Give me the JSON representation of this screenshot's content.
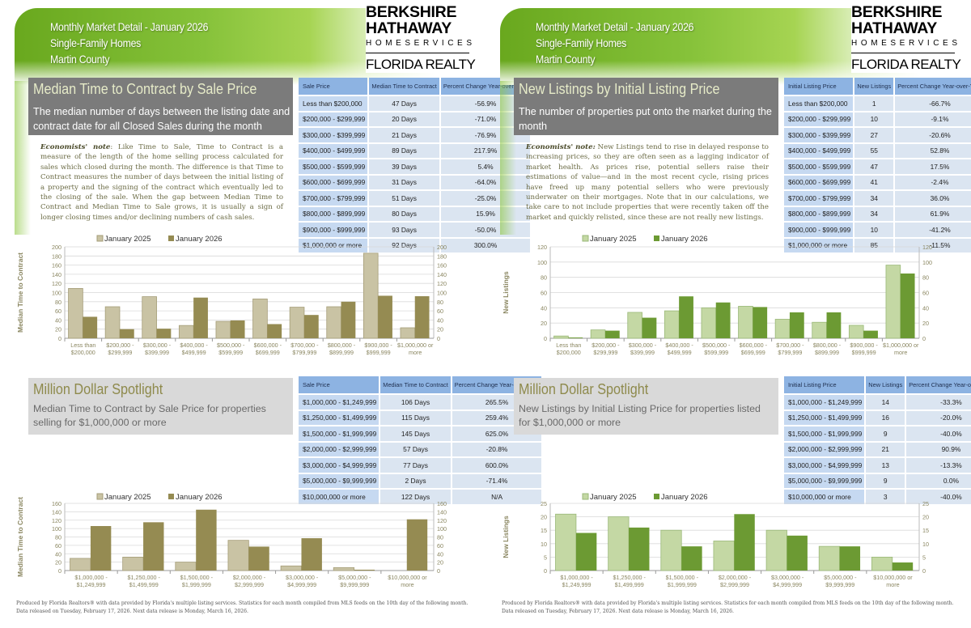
{
  "header": {
    "line1": "Monthly Market Detail - January 2026",
    "line2": "Single-Family Homes",
    "line3": "Martin County"
  },
  "logo": {
    "line1": "BERKSHIRE",
    "line2": "HATHAWAY",
    "line3": "HOMESERVICES",
    "line4": "FLORIDA REALTY"
  },
  "footer": {
    "line1": "Produced by Florida Realtors® with data provided by Florida's multiple listing services. Statistics for each month compiled from MLS feeds on the 10th day of the following month.",
    "line2": "Data released on Tuesday, February 17, 2026. Next data release is Monday, March 16, 2026."
  },
  "panels": [
    {
      "section_title": "Median Time to Contract by Sale Price",
      "section_subtitle": "The median number of days between the listing date and contract date for all Closed Sales during the month",
      "note_label": "Economists' note",
      "note_text": ": Like Time to Sale, Time to Contract is a measure of the length of the home selling process calculated for sales which closed during the month. The difference is that Time to Contract measures the number of days between the initial listing of a property and the signing of the contract which eventually led to the closing of the sale. When the gap between Median Time to Contract and Median Time to Sale grows, it is usually a sign of longer closing times and/or declining numbers of cash sales.",
      "table": {
        "headers": [
          "Sale Price",
          "Median Time to Contract",
          "Percent Change Year-over-Year"
        ],
        "rows": [
          [
            "Less than $200,000",
            "47 Days",
            "-56.9%"
          ],
          [
            "$200,000 - $299,999",
            "20 Days",
            "-71.0%"
          ],
          [
            "$300,000 - $399,999",
            "21 Days",
            "-76.9%"
          ],
          [
            "$400,000 - $499,999",
            "89 Days",
            "217.9%"
          ],
          [
            "$500,000 - $599,999",
            "39 Days",
            "5.4%"
          ],
          [
            "$600,000 - $699,999",
            "31 Days",
            "-64.0%"
          ],
          [
            "$700,000 - $799,999",
            "51 Days",
            "-25.0%"
          ],
          [
            "$800,000 - $899,999",
            "80 Days",
            "15.9%"
          ],
          [
            "$900,000 - $999,999",
            "93 Days",
            "-50.0%"
          ],
          [
            "$1,000,000 or more",
            "92 Days",
            "300.0%"
          ]
        ]
      },
      "spotlight_title": "Million Dollar Spotlight",
      "spotlight_subtitle": "Median Time to Contract by Sale Price for properties selling for $1,000,000 or more",
      "spotlight_table": {
        "headers": [
          "Sale Price",
          "Median Time to Contract",
          "Percent Change Year-over-Year"
        ],
        "rows": [
          [
            "$1,000,000 - $1,249,999",
            "106 Days",
            "265.5%"
          ],
          [
            "$1,250,000 - $1,499,999",
            "115 Days",
            "259.4%"
          ],
          [
            "$1,500,000 - $1,999,999",
            "145 Days",
            "625.0%"
          ],
          [
            "$2,000,000 - $2,999,999",
            "57 Days",
            "-20.8%"
          ],
          [
            "$3,000,000 - $4,999,999",
            "77 Days",
            "600.0%"
          ],
          [
            "$5,000,000 - $9,999,999",
            "2 Days",
            "-71.4%"
          ],
          [
            "$10,000,000 or more",
            "122 Days",
            "N/A"
          ]
        ]
      }
    },
    {
      "section_title": "New Listings by Initial Listing Price",
      "section_subtitle": "The number of properties put onto the market during the month",
      "note_label": "Economists' note:",
      "note_text": " New Listings tend to rise in delayed response to increasing prices, so they are often seen as a lagging indicator of market health. As prices rise, potential sellers raise their estimations of value—and in the most recent cycle, rising prices have freed up many potential sellers who were previously underwater on their mortgages. Note that in our calculations, we take care to not include properties that were recently taken off the market and quickly relisted, since these are not really new listings.",
      "table": {
        "headers": [
          "Initial Listing Price",
          "New Listings",
          "Percent Change Year-over-Year"
        ],
        "rows": [
          [
            "Less than $200,000",
            "1",
            "-66.7%"
          ],
          [
            "$200,000 - $299,999",
            "10",
            "-9.1%"
          ],
          [
            "$300,000 - $399,999",
            "27",
            "-20.6%"
          ],
          [
            "$400,000 - $499,999",
            "55",
            "52.8%"
          ],
          [
            "$500,000 - $599,999",
            "47",
            "17.5%"
          ],
          [
            "$600,000 - $699,999",
            "41",
            "-2.4%"
          ],
          [
            "$700,000 - $799,999",
            "34",
            "36.0%"
          ],
          [
            "$800,000 - $899,999",
            "34",
            "61.9%"
          ],
          [
            "$900,000 - $999,999",
            "10",
            "-41.2%"
          ],
          [
            "$1,000,000 or more",
            "85",
            "-11.5%"
          ]
        ]
      },
      "spotlight_title": "Million Dollar Spotlight",
      "spotlight_subtitle": "New Listings by Initial Listing Price for properties listed for $1,000,000 or more",
      "spotlight_table": {
        "headers": [
          "Initial Listing Price",
          "New Listings",
          "Percent Change Year-over-Year"
        ],
        "rows": [
          [
            "$1,000,000 - $1,249,999",
            "14",
            "-33.3%"
          ],
          [
            "$1,250,000 - $1,499,999",
            "16",
            "-20.0%"
          ],
          [
            "$1,500,000 - $1,999,999",
            "9",
            "-40.0%"
          ],
          [
            "$2,000,000 - $2,999,999",
            "21",
            "90.9%"
          ],
          [
            "$3,000,000 - $4,999,999",
            "13",
            "-13.3%"
          ],
          [
            "$5,000,000 - $9,999,999",
            "9",
            "0.0%"
          ],
          [
            "$10,000,000 or more",
            "3",
            "-40.0%"
          ]
        ]
      }
    }
  ],
  "colors": {
    "left_2025": "#c9c3a4",
    "left_2026": "#958b52",
    "right_2025": "#c4d8a4",
    "right_2026": "#6c9a33",
    "table_header": "#8db3e2"
  },
  "chart_data": [
    {
      "type": "bar",
      "ylabel": "Median Time to Contract",
      "ylim": [
        0,
        200
      ],
      "ystep": 20,
      "grid": true,
      "legend": "top",
      "categories": [
        "Less than $200,000",
        "$200,000 - $299,999",
        "$300,000 - $399,999",
        "$400,000 - $499,999",
        "$500,000 - $599,999",
        "$600,000 - $699,999",
        "$700,000 - $799,999",
        "$800,000 - $899,999",
        "$900,000 - $999,999",
        "$1,000,000 or more"
      ],
      "category_labels": [
        [
          "Less than",
          "$200,000"
        ],
        [
          "$200,000 -",
          "$299,999"
        ],
        [
          "$300,000 -",
          "$399,999"
        ],
        [
          "$400,000 -",
          "$499,999"
        ],
        [
          "$500,000 -",
          "$599,999"
        ],
        [
          "$600,000 -",
          "$699,999"
        ],
        [
          "$700,000 -",
          "$799,999"
        ],
        [
          "$800,000 -",
          "$899,999"
        ],
        [
          "$900,000 -",
          "$999,999"
        ],
        [
          "$1,000,000 or",
          "more"
        ]
      ],
      "series": [
        {
          "name": "January 2025",
          "values": [
            109,
            69,
            91,
            28,
            37,
            86,
            68,
            69,
            186,
            23
          ]
        },
        {
          "name": "January 2026",
          "values": [
            47,
            20,
            21,
            89,
            39,
            31,
            51,
            80,
            93,
            92
          ]
        }
      ]
    },
    {
      "type": "bar",
      "ylabel": "New Listings",
      "ylim": [
        0,
        120
      ],
      "ystep": 20,
      "grid": true,
      "legend": "top",
      "categories": [
        "Less than $200,000",
        "$200,000 - $299,999",
        "$300,000 - $399,999",
        "$400,000 - $499,999",
        "$500,000 - $599,999",
        "$600,000 - $699,999",
        "$700,000 - $799,999",
        "$800,000 - $899,999",
        "$900,000 - $999,999",
        "$1,000,000 or more"
      ],
      "category_labels": [
        [
          "Less than",
          "$200,000"
        ],
        [
          "$200,000 -",
          "$299,999"
        ],
        [
          "$300,000 -",
          "$399,999"
        ],
        [
          "$400,000 -",
          "$499,999"
        ],
        [
          "$500,000 -",
          "$599,999"
        ],
        [
          "$600,000 -",
          "$699,999"
        ],
        [
          "$700,000 -",
          "$799,999"
        ],
        [
          "$800,000 -",
          "$899,999"
        ],
        [
          "$900,000 -",
          "$999,999"
        ],
        [
          "$1,000,000 or",
          "more"
        ]
      ],
      "series": [
        {
          "name": "January 2025",
          "values": [
            3,
            11,
            34,
            36,
            40,
            42,
            25,
            21,
            17,
            96
          ]
        },
        {
          "name": "January 2026",
          "values": [
            1,
            10,
            27,
            55,
            47,
            41,
            34,
            34,
            10,
            85
          ]
        }
      ]
    },
    {
      "type": "bar",
      "ylabel": "Median Time to Contract",
      "ylim": [
        0,
        160
      ],
      "ystep": 20,
      "grid": true,
      "legend": "top",
      "categories": [
        "$1,000,000 - $1,249,999",
        "$1,250,000 - $1,499,999",
        "$1,500,000 - $1,999,999",
        "$2,000,000 - $2,999,999",
        "$3,000,000 - $4,999,999",
        "$5,000,000 - $9,999,999",
        "$10,000,000 or more"
      ],
      "category_labels": [
        [
          "$1,000,000 -",
          "$1,249,999"
        ],
        [
          "$1,250,000 -",
          "$1,499,999"
        ],
        [
          "$1,500,000 -",
          "$1,999,999"
        ],
        [
          "$2,000,000 -",
          "$2,999,999"
        ],
        [
          "$3,000,000 -",
          "$4,999,999"
        ],
        [
          "$5,000,000 -",
          "$9,999,999"
        ],
        [
          "$10,000,000 or",
          "more"
        ]
      ],
      "series": [
        {
          "name": "January 2025",
          "values": [
            29,
            32,
            20,
            72,
            11,
            7,
            0
          ]
        },
        {
          "name": "January 2026",
          "values": [
            106,
            115,
            145,
            57,
            77,
            2,
            122
          ]
        }
      ]
    },
    {
      "type": "bar",
      "ylabel": "New Listings",
      "ylim": [
        0,
        25
      ],
      "ystep": 5,
      "grid": true,
      "legend": "top",
      "categories": [
        "$1,000,000 - $1,249,999",
        "$1,250,000 - $1,499,999",
        "$1,500,000 - $1,999,999",
        "$2,000,000 - $2,999,999",
        "$3,000,000 - $4,999,999",
        "$5,000,000 - $9,999,999",
        "$10,000,000 or more"
      ],
      "category_labels": [
        [
          "$1,000,000 -",
          "$1,249,999"
        ],
        [
          "$1,250,000 -",
          "$1,499,999"
        ],
        [
          "$1,500,000 -",
          "$1,999,999"
        ],
        [
          "$2,000,000 -",
          "$2,999,999"
        ],
        [
          "$3,000,000 -",
          "$4,999,999"
        ],
        [
          "$5,000,000 -",
          "$9,999,999"
        ],
        [
          "$10,000,000 or",
          "more"
        ]
      ],
      "series": [
        {
          "name": "January 2025",
          "values": [
            21,
            20,
            15,
            11,
            15,
            9,
            5
          ]
        },
        {
          "name": "January 2026",
          "values": [
            14,
            16,
            9,
            21,
            13,
            9,
            3
          ]
        }
      ]
    }
  ]
}
